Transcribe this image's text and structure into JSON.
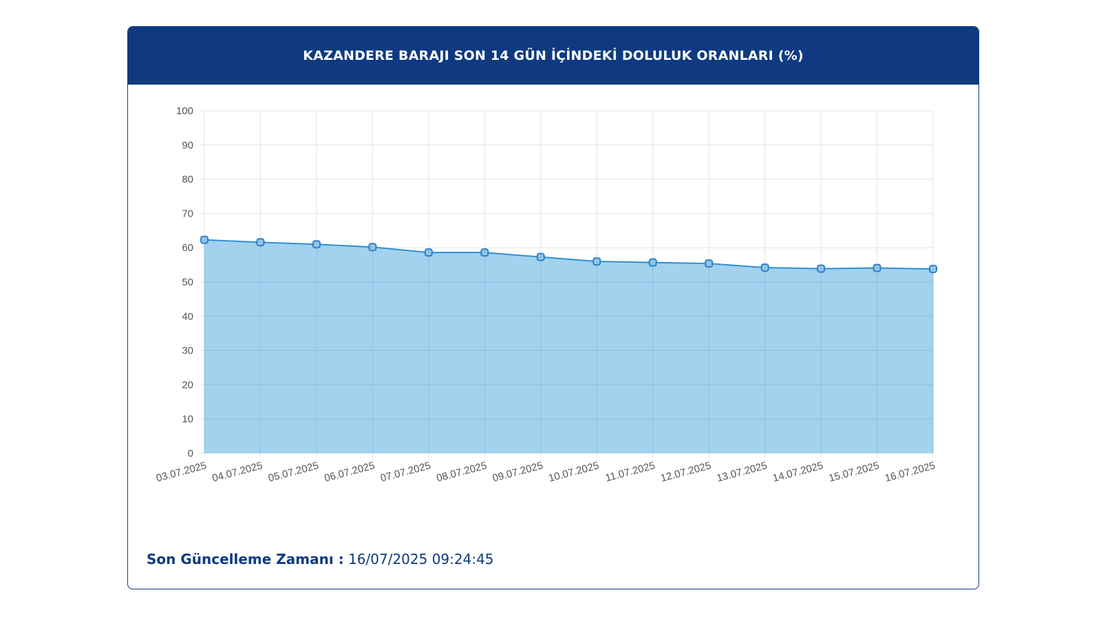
{
  "title": "KAZANDERE BARAJI SON 14 GÜN İÇİNDEKİ DOLULUK ORANLARI (%)",
  "footer": {
    "label": "Son Güncelleme Zamanı :",
    "value": "16/07/2025 09:24:45"
  },
  "colors": {
    "header": "#0f3a80",
    "line": "#2f8fd2",
    "fill": "#9dd0ec",
    "point": "#2f7fc8",
    "grid": "#e3e3e3"
  },
  "chart_data": {
    "type": "area",
    "title": "",
    "xlabel": "",
    "ylabel": "",
    "ylim": [
      0,
      100
    ],
    "yticks": [
      0,
      10,
      20,
      30,
      40,
      50,
      60,
      70,
      80,
      90,
      100
    ],
    "grid": true,
    "categories": [
      "03.07.2025",
      "04.07.2025",
      "05.07.2025",
      "06.07.2025",
      "07.07.2025",
      "08.07.2025",
      "09.07.2025",
      "10.07.2025",
      "11.07.2025",
      "12.07.2025",
      "13.07.2025",
      "14.07.2025",
      "15.07.2025",
      "16.07.2025"
    ],
    "series": [
      {
        "values": [
          62.3,
          61.6,
          61.0,
          60.2,
          58.6,
          58.6,
          57.3,
          56.0,
          55.7,
          55.4,
          54.2,
          53.9,
          54.1,
          53.8
        ]
      }
    ]
  }
}
